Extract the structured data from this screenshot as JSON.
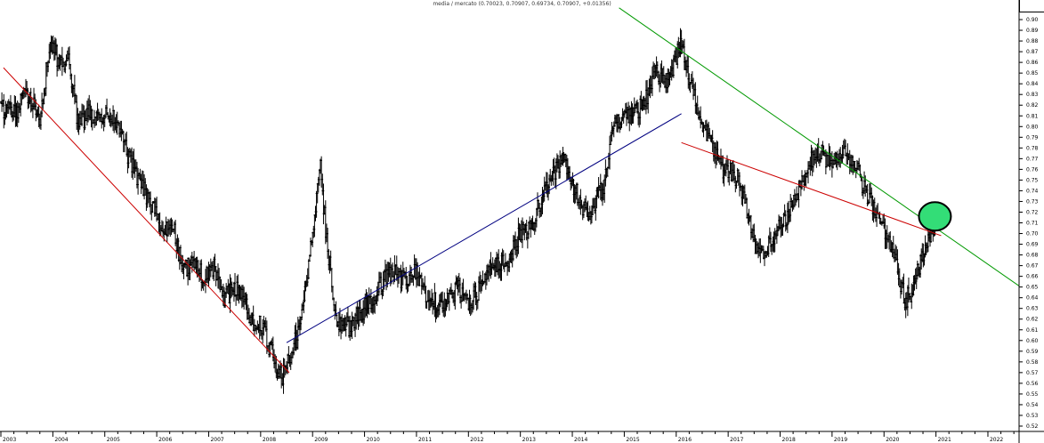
{
  "chart_data": {
    "type": "ohlc-bar",
    "title": "media / mercato (0.70023, 0.70907, 0.69734, 0.70907, +0.01356)",
    "xlabel": "",
    "ylabel": "",
    "x_tick_labels": [
      "2003",
      "2004",
      "2005",
      "2006",
      "2007",
      "2008",
      "2009",
      "2010",
      "2011",
      "2012",
      "2013",
      "2014",
      "2015",
      "2016",
      "2017",
      "2018",
      "2019",
      "2020",
      "2021",
      "2022"
    ],
    "y_tick_labels": [
      "0.90",
      "0.89",
      "0.88",
      "0.87",
      "0.86",
      "0.85",
      "0.84",
      "0.83",
      "0.82",
      "0.81",
      "0.80",
      "0.79",
      "0.78",
      "0.77",
      "0.76",
      "0.75",
      "0.74",
      "0.73",
      "0.72",
      "0.71",
      "0.70",
      "0.69",
      "0.68",
      "0.67",
      "0.66",
      "0.65",
      "0.64",
      "0.63",
      "0.62",
      "0.61",
      "0.60",
      "0.59",
      "0.58",
      "0.57",
      "0.56",
      "0.55",
      "0.54",
      "0.53",
      "0.52"
    ],
    "xlim": [
      2003.0,
      2022.6
    ],
    "ylim": [
      0.515,
      0.91
    ],
    "y_axis_position": "right",
    "grid": false,
    "last_bar": {
      "open": 0.70023,
      "high": 0.70907,
      "low": 0.69734,
      "close": 0.70907,
      "change": 0.01356
    },
    "price_anchors": [
      [
        2003.0,
        0.818
      ],
      [
        2003.3,
        0.813
      ],
      [
        2003.5,
        0.833
      ],
      [
        2003.75,
        0.808
      ],
      [
        2003.95,
        0.88
      ],
      [
        2004.1,
        0.862
      ],
      [
        2004.3,
        0.86
      ],
      [
        2004.5,
        0.8
      ],
      [
        2004.7,
        0.812
      ],
      [
        2004.9,
        0.805
      ],
      [
        2005.1,
        0.812
      ],
      [
        2005.3,
        0.796
      ],
      [
        2005.5,
        0.765
      ],
      [
        2005.7,
        0.745
      ],
      [
        2005.9,
        0.728
      ],
      [
        2006.1,
        0.698
      ],
      [
        2006.3,
        0.71
      ],
      [
        2006.5,
        0.665
      ],
      [
        2006.7,
        0.672
      ],
      [
        2006.9,
        0.66
      ],
      [
        2007.1,
        0.667
      ],
      [
        2007.3,
        0.64
      ],
      [
        2007.6,
        0.65
      ],
      [
        2007.8,
        0.62
      ],
      [
        2008.0,
        0.615
      ],
      [
        2008.2,
        0.59
      ],
      [
        2008.4,
        0.565
      ],
      [
        2008.5,
        0.575
      ],
      [
        2008.7,
        0.605
      ],
      [
        2008.85,
        0.645
      ],
      [
        2009.0,
        0.7
      ],
      [
        2009.15,
        0.76
      ],
      [
        2009.25,
        0.705
      ],
      [
        2009.45,
        0.62
      ],
      [
        2009.7,
        0.612
      ],
      [
        2009.9,
        0.625
      ],
      [
        2010.2,
        0.64
      ],
      [
        2010.4,
        0.66
      ],
      [
        2010.6,
        0.662
      ],
      [
        2010.8,
        0.655
      ],
      [
        2011.0,
        0.665
      ],
      [
        2011.2,
        0.64
      ],
      [
        2011.5,
        0.632
      ],
      [
        2011.8,
        0.65
      ],
      [
        2012.0,
        0.634
      ],
      [
        2012.2,
        0.647
      ],
      [
        2012.45,
        0.668
      ],
      [
        2012.75,
        0.675
      ],
      [
        2013.0,
        0.7
      ],
      [
        2013.2,
        0.705
      ],
      [
        2013.5,
        0.745
      ],
      [
        2013.8,
        0.77
      ],
      [
        2014.1,
        0.735
      ],
      [
        2014.3,
        0.715
      ],
      [
        2014.6,
        0.745
      ],
      [
        2014.8,
        0.802
      ],
      [
        2015.1,
        0.808
      ],
      [
        2015.4,
        0.822
      ],
      [
        2015.6,
        0.855
      ],
      [
        2015.8,
        0.84
      ],
      [
        2016.1,
        0.878
      ],
      [
        2016.25,
        0.845
      ],
      [
        2016.45,
        0.808
      ],
      [
        2016.7,
        0.782
      ],
      [
        2016.9,
        0.76
      ],
      [
        2017.1,
        0.758
      ],
      [
        2017.3,
        0.738
      ],
      [
        2017.5,
        0.69
      ],
      [
        2017.7,
        0.68
      ],
      [
        2017.9,
        0.7
      ],
      [
        2018.2,
        0.722
      ],
      [
        2018.4,
        0.742
      ],
      [
        2018.6,
        0.77
      ],
      [
        2018.8,
        0.775
      ],
      [
        2019.0,
        0.765
      ],
      [
        2019.2,
        0.778
      ],
      [
        2019.4,
        0.768
      ],
      [
        2019.6,
        0.745
      ],
      [
        2019.8,
        0.722
      ],
      [
        2020.0,
        0.702
      ],
      [
        2020.2,
        0.682
      ],
      [
        2020.4,
        0.636
      ],
      [
        2020.55,
        0.648
      ],
      [
        2020.7,
        0.672
      ],
      [
        2020.85,
        0.697
      ],
      [
        2020.98,
        0.70907
      ]
    ],
    "trendlines": [
      {
        "color": "#cc0000",
        "from": [
          2003.05,
          0.855
        ],
        "to": [
          2008.55,
          0.57
        ]
      },
      {
        "color": "#000080",
        "from": [
          2008.5,
          0.598
        ],
        "to": [
          2016.1,
          0.812
        ]
      },
      {
        "color": "#cc0000",
        "from": [
          2016.1,
          0.785
        ],
        "to": [
          2021.1,
          0.698
        ]
      },
      {
        "color": "#009900",
        "from": [
          2014.9,
          0.911
        ],
        "to": [
          2022.6,
          0.651
        ]
      }
    ],
    "highlight": {
      "x": 2020.98,
      "y": 0.716,
      "color": "#33dd77"
    },
    "colors": {
      "bars": "#000000",
      "axes": "#000000",
      "background": "#ffffff"
    }
  }
}
